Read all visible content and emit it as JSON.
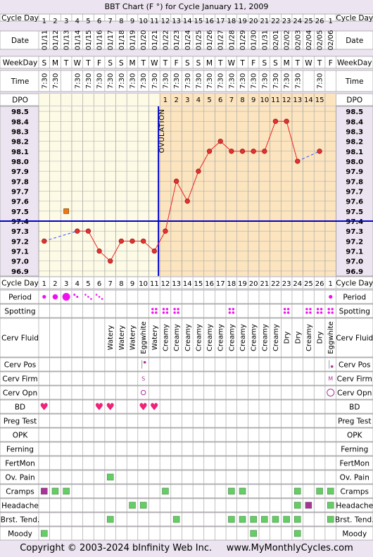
{
  "title": "BBT Chart (F °) for Cycle January 11, 2009",
  "copyright": "Copyright © 2003-2024 bInfinity Web Inc.",
  "site": "www.MyMonthlyCycles.com",
  "ovulation_label": "OVULATION",
  "row_labels": {
    "cycle_day": "Cycle Day",
    "date": "Date",
    "weekday": "WeekDay",
    "time": "Time",
    "dpo": "DPO",
    "period": "Period",
    "spotting": "Spotting",
    "cerv_fluid": "Cerv Fluid",
    "cerv_pos": "Cerv Pos",
    "cerv_firm": "Cerv Firm",
    "cerv_opn": "Cerv Opn",
    "bd": "BD",
    "preg_test": "Preg Test",
    "opk": "OPK",
    "ferning": "Ferning",
    "fertmon": "FertMon",
    "ov_pain": "Ov. Pain",
    "cramps": "Cramps",
    "headache": "Headache",
    "brst_tend": "Brst. Tend.",
    "moody": "Moody"
  },
  "chart_data": {
    "type": "line",
    "title": "BBT Chart (F °) for Cycle January 11, 2009",
    "ylim": [
      96.9,
      98.5
    ],
    "y_ticks": [
      "98.5",
      "98.4",
      "98.3",
      "98.2",
      "98.1",
      "98.0",
      "97.9",
      "97.8",
      "97.7",
      "97.6",
      "97.5",
      "97.4",
      "97.3",
      "97.2",
      "97.1",
      "97.0",
      "96.9"
    ],
    "cycle_days": [
      1,
      2,
      3,
      4,
      5,
      6,
      7,
      8,
      9,
      10,
      11,
      12,
      13,
      14,
      15,
      16,
      17,
      18,
      19,
      20,
      21,
      22,
      23,
      24,
      25,
      26,
      1
    ],
    "dates": [
      "01/11",
      "01/12",
      "01/13",
      "01/14",
      "01/15",
      "01/16",
      "01/17",
      "01/18",
      "01/19",
      "01/20",
      "01/21",
      "01/22",
      "01/23",
      "01/24",
      "01/25",
      "01/26",
      "01/27",
      "01/28",
      "01/29",
      "01/30",
      "01/31",
      "02/01",
      "02/02",
      "02/03",
      "02/04",
      "02/05",
      "02/06"
    ],
    "weekdays": [
      "S",
      "M",
      "T",
      "W",
      "T",
      "F",
      "S",
      "S",
      "M",
      "T",
      "W",
      "T",
      "F",
      "S",
      "S",
      "M",
      "T",
      "W",
      "T",
      "F",
      "S",
      "S",
      "M",
      "T",
      "W",
      "T",
      "F"
    ],
    "times": [
      "7:30",
      "7:30",
      "",
      "7:30",
      "7:30",
      "7:30",
      "7:30",
      "7:30",
      "7:30",
      "7:30",
      "7:30",
      "7:30",
      "7:30",
      "7:30",
      "7:30",
      "7:30",
      "7:30",
      "7:30",
      "7:30",
      "7:30",
      "7:30",
      "7:30",
      "7:30",
      "7:30",
      "",
      "7:30",
      ""
    ],
    "dpo": [
      "",
      "",
      "",
      "",
      "",
      "",
      "",
      "",
      "",
      "",
      "",
      "1",
      "2",
      "3",
      "4",
      "5",
      "6",
      "7",
      "8",
      "9",
      "10",
      "11",
      "12",
      "13",
      "14",
      "15",
      ""
    ],
    "temperatures": [
      97.2,
      null,
      null,
      97.3,
      97.3,
      97.1,
      97.0,
      97.2,
      97.2,
      97.2,
      97.1,
      97.3,
      97.8,
      97.6,
      97.9,
      98.1,
      98.2,
      98.1,
      98.1,
      98.1,
      98.1,
      98.4,
      98.4,
      98.0,
      null,
      98.1,
      null
    ],
    "excluded_temperatures": [
      {
        "day_index": 2,
        "value": 97.5
      }
    ],
    "coverline": 97.4,
    "ovulation_day_index": 11,
    "period": [
      "small",
      "medium",
      "heavy",
      "light",
      "spotting",
      "spotting",
      "",
      "",
      "",
      "",
      "",
      "",
      "",
      "",
      "",
      "",
      "",
      "",
      "",
      "",
      "",
      "",
      "",
      "",
      "",
      "",
      "small"
    ],
    "spotting": [
      false,
      false,
      false,
      false,
      false,
      false,
      false,
      false,
      false,
      false,
      true,
      true,
      true,
      false,
      false,
      false,
      false,
      true,
      false,
      false,
      false,
      false,
      true,
      false,
      true,
      true,
      true
    ],
    "cerv_fluid": [
      "",
      "",
      "",
      "",
      "",
      "",
      "Watery",
      "Watery",
      "Watery",
      "Eggwhite",
      "Watery",
      "Creamy",
      "Creamy",
      "Creamy",
      "Creamy",
      "Creamy",
      "Creamy",
      "Creamy",
      "Creamy",
      "Creamy",
      "Creamy",
      "Creamy",
      "Dry",
      "Dry",
      "Creamy",
      "Dry",
      "Eggwhite"
    ],
    "cerv_pos": [
      "",
      "",
      "",
      "",
      "",
      "",
      "",
      "",
      "",
      "H",
      "",
      "",
      "",
      "",
      "",
      "",
      "",
      "",
      "",
      "",
      "",
      "",
      "",
      "",
      "",
      "",
      "L"
    ],
    "cerv_firm": [
      "",
      "",
      "",
      "",
      "",
      "",
      "",
      "",
      "",
      "S",
      "",
      "",
      "",
      "",
      "",
      "",
      "",
      "",
      "",
      "",
      "",
      "",
      "",
      "",
      "",
      "",
      "M"
    ],
    "cerv_opn": [
      "",
      "",
      "",
      "",
      "",
      "",
      "",
      "",
      "",
      "O",
      "",
      "",
      "",
      "",
      "",
      "",
      "",
      "",
      "",
      "",
      "",
      "",
      "",
      "",
      "",
      "",
      "O"
    ],
    "bd": [
      1,
      0,
      0,
      0,
      0,
      1,
      1,
      0,
      0,
      1,
      1,
      0,
      0,
      0,
      0,
      0,
      0,
      0,
      0,
      0,
      0,
      0,
      0,
      0,
      0,
      0,
      0
    ],
    "ov_pain": [
      0,
      0,
      0,
      0,
      0,
      0,
      1,
      0,
      0,
      0,
      0,
      0,
      0,
      0,
      0,
      0,
      0,
      0,
      0,
      0,
      0,
      0,
      0,
      0,
      0,
      0,
      0
    ],
    "cramps": [
      "m",
      "g",
      "g",
      "",
      "",
      "",
      "",
      "",
      "",
      "",
      "",
      "g",
      "",
      "",
      "",
      "",
      "",
      "g",
      "g",
      "",
      "",
      "",
      "",
      "g",
      "",
      "g",
      "g"
    ],
    "headache": [
      "",
      "",
      "",
      "",
      "",
      "",
      "",
      "",
      "g",
      "g",
      "",
      "",
      "",
      "",
      "",
      "",
      "",
      "",
      "",
      "",
      "",
      "",
      "",
      "g",
      "m",
      "",
      "g"
    ],
    "brst_tend": [
      "",
      "",
      "",
      "",
      "",
      "",
      "g",
      "",
      "",
      "",
      "",
      "",
      "g",
      "",
      "",
      "",
      "",
      "g",
      "g",
      "g",
      "g",
      "g",
      "g",
      "g",
      "",
      "",
      "g"
    ],
    "moody": [
      "g",
      "",
      "",
      "",
      "",
      "",
      "",
      "",
      "",
      "",
      "",
      "",
      "",
      "",
      "",
      "",
      "",
      "",
      "",
      "g",
      "",
      "",
      "",
      "g",
      "",
      "",
      ""
    ]
  },
  "colors": {
    "bg": "#ece4f0",
    "pre_ov": "#fdfbe6",
    "post_ov": "#fbe4be",
    "grid": "#aaaaaa",
    "line": "#ee2222",
    "point": "#dd3333",
    "coverline": "#0000cc",
    "ovulation": "#0000cc",
    "dash": "#3355ff",
    "magenta": "#ee11ee",
    "green": "#66cc66",
    "purple": "#aa3399",
    "pink": "#ee2277",
    "excluded": "#ee7711"
  }
}
